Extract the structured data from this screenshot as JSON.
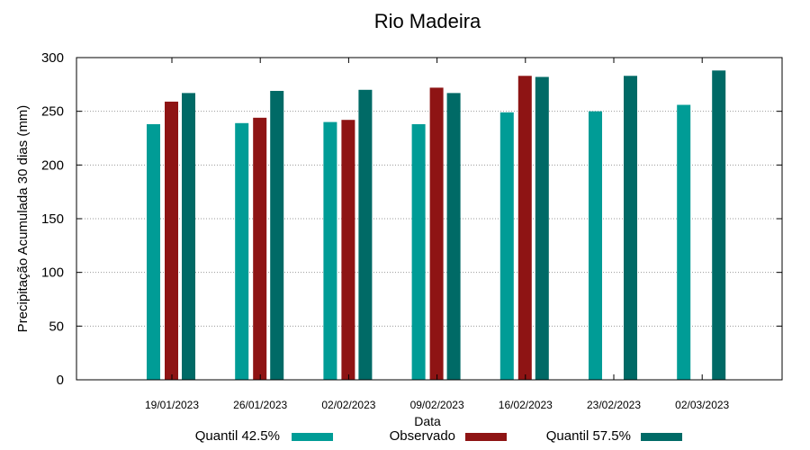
{
  "chart_data": {
    "type": "bar",
    "title": "Rio Madeira",
    "xlabel": "Data",
    "ylabel": "Precipitação Acumulada 30 dias (mm)",
    "ylim": [
      0,
      300
    ],
    "yticks": [
      0,
      50,
      100,
      150,
      200,
      250,
      300
    ],
    "grid": true,
    "legend_position": "bottom",
    "categories": [
      "19/01/2023",
      "26/01/2023",
      "02/02/2023",
      "09/02/2023",
      "16/02/2023",
      "23/02/2023",
      "02/03/2023"
    ],
    "series": [
      {
        "name": "Quantil 42.5%",
        "color": "#009c96",
        "values": [
          238,
          239,
          240,
          238,
          249,
          250,
          256
        ]
      },
      {
        "name": "Observado",
        "color": "#8e1414",
        "values": [
          259,
          244,
          242,
          272,
          283,
          null,
          null
        ]
      },
      {
        "name": "Quantil 57.5%",
        "color": "#006a66",
        "values": [
          267,
          269,
          270,
          267,
          282,
          283,
          288
        ]
      }
    ]
  }
}
